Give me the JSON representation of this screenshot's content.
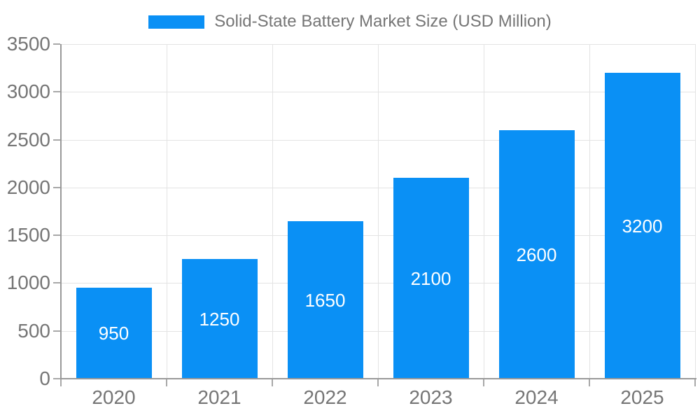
{
  "chart_data": {
    "type": "bar",
    "title": "Solid-State Battery Market Size (USD Million)",
    "legend": {
      "position": "top",
      "entries": [
        "Solid-State Battery Market Size (USD Million)"
      ]
    },
    "categories": [
      "2020",
      "2021",
      "2022",
      "2023",
      "2024",
      "2025"
    ],
    "series": [
      {
        "name": "Solid-State Battery Market Size (USD Million)",
        "values": [
          950,
          1250,
          1650,
          2100,
          2600,
          3200
        ]
      }
    ],
    "bar_value_labels": [
      "950",
      "1250",
      "1650",
      "2100",
      "2600",
      "3200"
    ],
    "xlabel": "",
    "ylabel": "",
    "ylim": [
      0,
      3500
    ],
    "yticks": [
      0,
      500,
      1000,
      1500,
      2000,
      2500,
      3000,
      3500
    ],
    "grid": true,
    "colors": {
      "bar": "#0a90f5",
      "bar_label": "#ffffff",
      "grid": "#e3e3e3",
      "axis": "#999999",
      "tick": "#a8a8a8",
      "text": "#757575",
      "background": "#ffffff"
    }
  }
}
